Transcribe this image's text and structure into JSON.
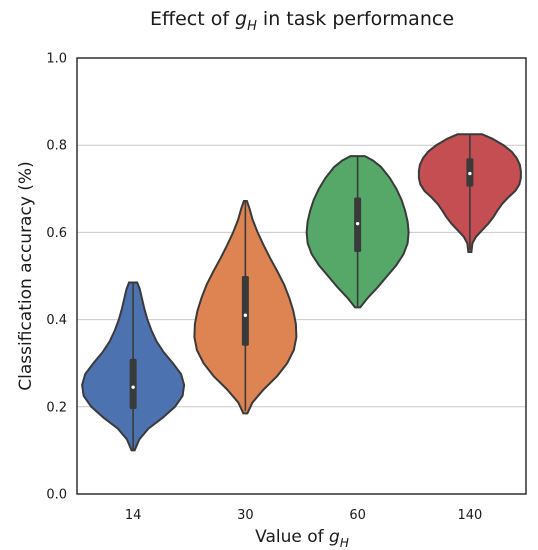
{
  "chart_data": {
    "type": "violin",
    "title_prefix": "Effect of ",
    "title_var": "g",
    "title_sub": "H",
    "title_suffix": " in task performance",
    "xlabel_prefix": "Value of ",
    "xlabel_var": "g",
    "xlabel_sub": "H",
    "ylabel": "Classification accuracy (%)",
    "ylim": [
      0.0,
      1.0
    ],
    "yticks": [
      "0.0",
      "0.2",
      "0.4",
      "0.6",
      "0.8",
      "1.0"
    ],
    "grid": "horizontal",
    "categories": [
      "14",
      "30",
      "60",
      "140"
    ],
    "series": [
      {
        "category": "14",
        "color": "#4c72b0",
        "min": 0.1,
        "max": 0.485,
        "q1": 0.195,
        "median": 0.245,
        "q3": 0.31,
        "whisker_low": 0.1,
        "whisker_high": 0.485,
        "density": [
          [
            0.1,
            0.03
          ],
          [
            0.125,
            0.12
          ],
          [
            0.15,
            0.3
          ],
          [
            0.175,
            0.58
          ],
          [
            0.2,
            0.82
          ],
          [
            0.225,
            0.97
          ],
          [
            0.25,
            1.0
          ],
          [
            0.275,
            0.94
          ],
          [
            0.3,
            0.78
          ],
          [
            0.325,
            0.6
          ],
          [
            0.35,
            0.46
          ],
          [
            0.375,
            0.36
          ],
          [
            0.4,
            0.28
          ],
          [
            0.425,
            0.22
          ],
          [
            0.45,
            0.17
          ],
          [
            0.47,
            0.13
          ],
          [
            0.485,
            0.08
          ]
        ]
      },
      {
        "category": "30",
        "color": "#dd8452",
        "min": 0.185,
        "max": 0.672,
        "q1": 0.34,
        "median": 0.41,
        "q3": 0.5,
        "whisker_low": 0.19,
        "whisker_high": 0.672,
        "density": [
          [
            0.185,
            0.04
          ],
          [
            0.21,
            0.14
          ],
          [
            0.24,
            0.36
          ],
          [
            0.27,
            0.62
          ],
          [
            0.3,
            0.82
          ],
          [
            0.33,
            0.95
          ],
          [
            0.36,
            1.0
          ],
          [
            0.39,
            0.99
          ],
          [
            0.42,
            0.94
          ],
          [
            0.45,
            0.86
          ],
          [
            0.48,
            0.76
          ],
          [
            0.51,
            0.63
          ],
          [
            0.54,
            0.49
          ],
          [
            0.57,
            0.36
          ],
          [
            0.6,
            0.24
          ],
          [
            0.63,
            0.14
          ],
          [
            0.655,
            0.08
          ],
          [
            0.672,
            0.03
          ]
        ]
      },
      {
        "category": "60",
        "color": "#55a868",
        "min": 0.428,
        "max": 0.775,
        "q1": 0.555,
        "median": 0.62,
        "q3": 0.68,
        "whisker_low": 0.43,
        "whisker_high": 0.775,
        "density": [
          [
            0.428,
            0.05
          ],
          [
            0.45,
            0.2
          ],
          [
            0.475,
            0.4
          ],
          [
            0.5,
            0.58
          ],
          [
            0.525,
            0.76
          ],
          [
            0.55,
            0.9
          ],
          [
            0.575,
            0.98
          ],
          [
            0.6,
            1.0
          ],
          [
            0.625,
            0.98
          ],
          [
            0.65,
            0.93
          ],
          [
            0.675,
            0.86
          ],
          [
            0.7,
            0.76
          ],
          [
            0.725,
            0.63
          ],
          [
            0.75,
            0.46
          ],
          [
            0.765,
            0.3
          ],
          [
            0.775,
            0.14
          ]
        ]
      },
      {
        "category": "140",
        "color": "#c44e52",
        "min": 0.555,
        "max": 0.825,
        "q1": 0.705,
        "median": 0.735,
        "q3": 0.77,
        "whisker_low": 0.56,
        "whisker_high": 0.825,
        "density": [
          [
            0.555,
            0.03
          ],
          [
            0.575,
            0.05
          ],
          [
            0.59,
            0.12
          ],
          [
            0.605,
            0.24
          ],
          [
            0.62,
            0.36
          ],
          [
            0.635,
            0.46
          ],
          [
            0.65,
            0.54
          ],
          [
            0.665,
            0.63
          ],
          [
            0.68,
            0.75
          ],
          [
            0.695,
            0.89
          ],
          [
            0.71,
            0.97
          ],
          [
            0.725,
            1.0
          ],
          [
            0.74,
            1.0
          ],
          [
            0.755,
            0.98
          ],
          [
            0.77,
            0.92
          ],
          [
            0.785,
            0.82
          ],
          [
            0.8,
            0.66
          ],
          [
            0.815,
            0.44
          ],
          [
            0.825,
            0.24
          ]
        ]
      }
    ]
  }
}
